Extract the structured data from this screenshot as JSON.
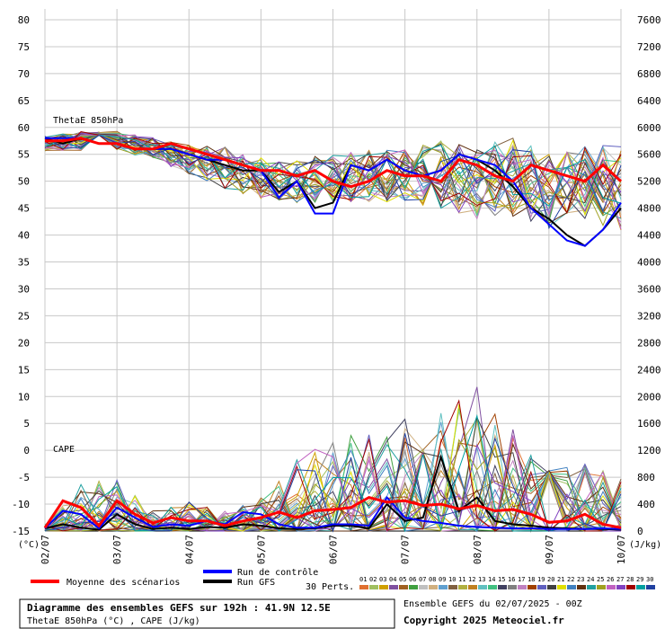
{
  "chart_data": {
    "type": "line",
    "title": "Diagramme des ensembles GEFS sur 192h : 41.9N 12.5E",
    "subtitle": "ThetaE 850hPa (°C) , CAPE (J/kg)",
    "ensemble_label": "Ensemble GEFS du 02/07/2025 - 00Z",
    "copyright": "Copyright 2025 Meteociel.fr",
    "y_left_unit": "(°C)",
    "y_right_unit": "(J/kg)",
    "y_left_ticks": [
      "80",
      "75",
      "70",
      "65",
      "60",
      "55",
      "50",
      "45",
      "40",
      "35",
      "30",
      "25",
      "20",
      "15",
      "10",
      "5",
      "0",
      "-5",
      "-10",
      "-15"
    ],
    "y_right_ticks": [
      "7600",
      "7200",
      "6800",
      "6400",
      "6000",
      "5600",
      "5200",
      "4800",
      "4400",
      "4000",
      "3600",
      "3200",
      "2800",
      "2400",
      "2000",
      "1600",
      "1200",
      "800",
      "400",
      "0"
    ],
    "x_ticks": [
      "02/07",
      "03/07",
      "04/07",
      "05/07",
      "06/07",
      "07/07",
      "08/07",
      "09/07",
      "10/07"
    ],
    "ylim_left": [
      -15,
      80
    ],
    "ylim_right": [
      0,
      7600
    ],
    "x_hours": [
      0,
      192
    ],
    "panel_labels": {
      "thetae": "ThetaE 850hPa",
      "cape": "CAPE"
    },
    "legend": {
      "mean": "Moyenne des scénarios",
      "control": "Run de contrôle",
      "gfs": "Run GFS",
      "perts": "30 Perts."
    },
    "member_labels": [
      "01",
      "02",
      "03",
      "04",
      "05",
      "06",
      "07",
      "08",
      "09",
      "10",
      "11",
      "12",
      "13",
      "14",
      "15",
      "16",
      "17",
      "18",
      "19",
      "20",
      "21",
      "22",
      "23",
      "24",
      "25",
      "26",
      "27",
      "28",
      "29",
      "30"
    ],
    "member_colors": [
      "#e07030",
      "#a0c060",
      "#d0a000",
      "#8050a0",
      "#a06020",
      "#40a040",
      "#c0c0c0",
      "#d0b080",
      "#60a0d0",
      "#806040",
      "#b0b040",
      "#c08020",
      "#60c0c0",
      "#40c080",
      "#404060",
      "#808080",
      "#c080c0",
      "#a04000",
      "#6060c0",
      "#404040",
      "#e0e000",
      "#4080c0",
      "#603010",
      "#20a0a0",
      "#a0a020",
      "#c060c0",
      "#8040c0",
      "#a00000",
      "#00a0a0",
      "#2040a0"
    ],
    "series": [
      {
        "name": "Moyenne des scénarios",
        "color": "#ff0000",
        "x": [
          0,
          6,
          12,
          18,
          24,
          30,
          36,
          42,
          48,
          54,
          60,
          66,
          72,
          78,
          84,
          90,
          96,
          102,
          108,
          114,
          120,
          126,
          132,
          138,
          144,
          150,
          156,
          162,
          168,
          174,
          180,
          186,
          192
        ],
        "thetae": [
          57.5,
          57.5,
          58,
          57,
          57,
          56,
          56,
          57,
          56,
          55,
          54,
          53,
          52,
          52,
          51,
          52,
          50,
          49,
          50,
          52,
          51,
          51,
          50,
          54,
          53,
          51,
          50,
          53,
          52,
          51,
          50,
          53,
          50
        ],
        "cape": [
          50,
          450,
          350,
          80,
          450,
          250,
          120,
          200,
          150,
          150,
          80,
          150,
          200,
          280,
          200,
          300,
          320,
          350,
          500,
          430,
          450,
          380,
          400,
          330,
          380,
          300,
          320,
          250,
          130,
          150,
          250,
          100,
          50
        ]
      },
      {
        "name": "Run de contrôle",
        "color": "#0000ff",
        "x": [
          0,
          6,
          12,
          18,
          24,
          30,
          36,
          42,
          48,
          54,
          60,
          66,
          72,
          78,
          84,
          90,
          96,
          102,
          108,
          114,
          120,
          126,
          132,
          138,
          144,
          150,
          156,
          162,
          168,
          174,
          180,
          186,
          192
        ],
        "thetae": [
          58,
          58,
          58,
          57,
          57,
          56,
          56,
          56,
          55,
          54,
          54,
          53,
          52,
          47,
          50,
          44,
          44,
          53,
          52,
          54,
          52,
          51,
          52,
          55,
          54,
          53,
          50,
          45,
          42,
          39,
          38,
          41,
          46
        ],
        "cape": [
          40,
          300,
          250,
          40,
          350,
          200,
          60,
          100,
          80,
          150,
          100,
          280,
          250,
          100,
          50,
          50,
          100,
          100,
          80,
          500,
          200,
          150,
          120,
          80,
          60,
          50,
          40,
          40,
          30,
          30,
          30,
          40,
          30
        ]
      },
      {
        "name": "Run GFS",
        "color": "#000000",
        "x": [
          0,
          6,
          12,
          18,
          24,
          30,
          36,
          42,
          48,
          54,
          60,
          66,
          72,
          78,
          84,
          90,
          96,
          102,
          108,
          114,
          120,
          126,
          132,
          138,
          144,
          150,
          156,
          162,
          168,
          174,
          180,
          186,
          192
        ],
        "thetae": [
          58,
          57,
          58,
          57,
          57,
          56,
          56,
          56,
          55,
          54,
          53,
          52,
          52,
          48,
          50,
          45,
          46,
          53,
          52,
          54,
          52,
          51,
          52,
          55,
          54,
          52,
          49,
          45,
          43,
          40,
          38,
          41,
          45
        ],
        "cape": [
          40,
          100,
          50,
          20,
          250,
          100,
          30,
          50,
          30,
          60,
          50,
          100,
          80,
          40,
          30,
          40,
          80,
          80,
          40,
          400,
          150,
          200,
          1100,
          300,
          500,
          150,
          100,
          80,
          50,
          40,
          30,
          30,
          20
        ]
      }
    ],
    "members_summary": {
      "count": 30,
      "x": [
        0,
        12,
        24,
        36,
        48,
        60,
        72,
        84,
        96,
        108,
        120,
        132,
        144,
        156,
        168,
        180,
        192
      ],
      "thetae_min": [
        55,
        55,
        55,
        53,
        50,
        47,
        45,
        44,
        44,
        44,
        44,
        42,
        40,
        40,
        38,
        40,
        37
      ],
      "thetae_max": [
        59,
        60,
        60,
        59,
        58,
        58,
        56,
        56,
        57,
        58,
        58,
        61,
        59,
        62,
        58,
        60,
        60
      ],
      "cape_max": [
        100,
        700,
        800,
        300,
        450,
        300,
        500,
        1100,
        1450,
        1500,
        1700,
        1800,
        2150,
        1550,
        900,
        1000,
        800
      ]
    }
  }
}
